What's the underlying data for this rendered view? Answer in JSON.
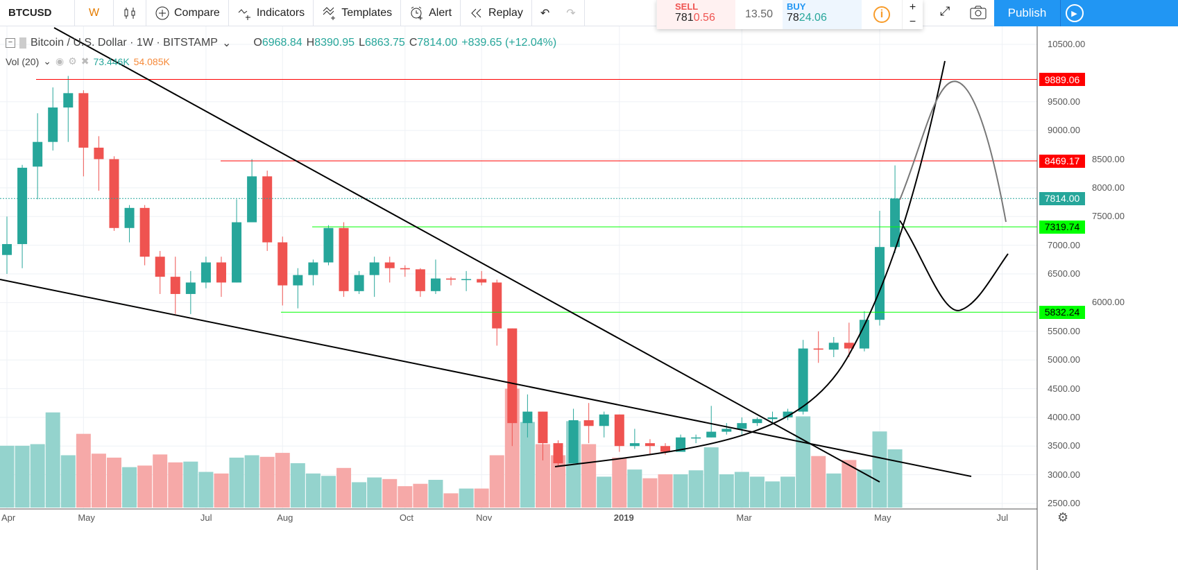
{
  "toolbar": {
    "symbol": "BTCUSD",
    "interval": "W",
    "compare": "Compare",
    "indicators": "Indicators",
    "templates": "Templates",
    "alert": "Alert",
    "replay": "Replay",
    "publish": "Publish"
  },
  "trade": {
    "sell_label": "SELL",
    "sell_a": "781",
    "sell_b": "0.56",
    "spread": "13.50",
    "buy_label": "BUY",
    "buy_a": "78",
    "buy_b": "24.06"
  },
  "legend": {
    "title": "Bitcoin / U.S. Dollar · 1W · BITSTAMP",
    "o": "6968.84",
    "h": "8390.95",
    "l": "6863.75",
    "c": "7814.00",
    "chg": "+839.65 (+12.04%)",
    "vol_label": "Vol (20)",
    "vol_value": "73.446K",
    "vol_ma": "54.085K"
  },
  "price_axis": {
    "ticks": [
      "10500.00",
      "9500.00",
      "9000.00",
      "8500.00",
      "8000.00",
      "7500.00",
      "7000.00",
      "6500.00",
      "6000.00",
      "5500.00",
      "5000.00",
      "4500.00",
      "4000.00",
      "3500.00",
      "3000.00",
      "2500.00"
    ],
    "tick_values": [
      10500,
      9500,
      9000,
      8500,
      8000,
      7500,
      7000,
      6500,
      6000,
      5500,
      5000,
      4500,
      4000,
      3500,
      3000,
      2500
    ],
    "range": [
      2500,
      10500
    ]
  },
  "levels": [
    {
      "label": "9889.06",
      "value": 9889.06,
      "color": "#ff0000"
    },
    {
      "label": "8469.17",
      "value": 8469.17,
      "color": "#ff0000"
    },
    {
      "label": "7814.00",
      "value": 7814,
      "color": "#26a69a"
    },
    {
      "label": "7319.74",
      "value": 7319.74,
      "color": "#00ff00"
    },
    {
      "label": "5832.24",
      "value": 5832.24,
      "color": "#00ff00"
    }
  ],
  "time_axis": [
    {
      "label": "Apr",
      "i": 0
    },
    {
      "label": "May",
      "i": 5
    },
    {
      "label": "Jul",
      "i": 13
    },
    {
      "label": "Aug",
      "i": 18
    },
    {
      "label": "Oct",
      "i": 26
    },
    {
      "label": "Nov",
      "i": 31
    },
    {
      "label": "2019",
      "i": 40
    },
    {
      "label": "Mar",
      "i": 48
    },
    {
      "label": "May",
      "i": 57
    },
    {
      "label": "Jul",
      "i": 65
    }
  ],
  "colors": {
    "up": "#26a69a",
    "down": "#ef5350",
    "vol_up": "#94d3cd",
    "vol_down": "#f6a9a8"
  },
  "chart_data": {
    "type": "candlestick",
    "title": "Bitcoin / U.S. Dollar · 1W · BITSTAMP",
    "candles": [
      [
        6830,
        7500,
        6500,
        7020
      ],
      [
        7020,
        8400,
        6600,
        8350
      ],
      [
        8370,
        9300,
        7800,
        8800
      ],
      [
        8800,
        9750,
        8650,
        9400
      ],
      [
        9400,
        9950,
        8800,
        9650
      ],
      [
        9650,
        9700,
        8200,
        8700
      ],
      [
        8700,
        8900,
        7950,
        8500
      ],
      [
        8500,
        8550,
        7250,
        7300
      ],
      [
        7300,
        7700,
        7050,
        7650
      ],
      [
        7650,
        7700,
        6650,
        6800
      ],
      [
        6800,
        6900,
        6150,
        6450
      ],
      [
        6450,
        6800,
        5800,
        6150
      ],
      [
        6150,
        6550,
        5800,
        6350
      ],
      [
        6350,
        6800,
        6250,
        6700
      ],
      [
        6700,
        6800,
        6100,
        6350
      ],
      [
        6350,
        7800,
        6350,
        7400
      ],
      [
        7400,
        8500,
        7400,
        8200
      ],
      [
        8200,
        8300,
        6900,
        7050
      ],
      [
        7050,
        7150,
        5950,
        6300
      ],
      [
        6300,
        6600,
        5900,
        6480
      ],
      [
        6480,
        6750,
        6300,
        6700
      ],
      [
        6700,
        7350,
        6650,
        7300
      ],
      [
        7300,
        7400,
        6100,
        6200
      ],
      [
        6200,
        6550,
        6150,
        6480
      ],
      [
        6480,
        6800,
        6100,
        6700
      ],
      [
        6700,
        6800,
        6350,
        6600
      ],
      [
        6600,
        6650,
        6450,
        6580
      ],
      [
        6580,
        6600,
        6100,
        6200
      ],
      [
        6200,
        6750,
        6150,
        6420
      ],
      [
        6420,
        6450,
        6300,
        6400
      ],
      [
        6400,
        6550,
        6200,
        6410
      ],
      [
        6410,
        6550,
        6300,
        6350
      ],
      [
        6350,
        6400,
        5250,
        5550
      ],
      [
        5550,
        5550,
        3500,
        3900
      ],
      [
        3900,
        4400,
        3650,
        4100
      ],
      [
        4100,
        4100,
        3250,
        3550
      ],
      [
        3550,
        3600,
        3150,
        3200
      ],
      [
        3200,
        4150,
        3200,
        3950
      ],
      [
        3950,
        4250,
        3550,
        3850
      ],
      [
        3850,
        4100,
        3650,
        4050
      ],
      [
        4050,
        4050,
        3400,
        3500
      ],
      [
        3500,
        3800,
        3450,
        3550
      ],
      [
        3550,
        3620,
        3350,
        3500
      ],
      [
        3500,
        3550,
        3350,
        3400
      ],
      [
        3400,
        3700,
        3400,
        3650
      ],
      [
        3640,
        3700,
        3550,
        3650
      ],
      [
        3650,
        4200,
        3650,
        3750
      ],
      [
        3750,
        3900,
        3700,
        3800
      ],
      [
        3800,
        4000,
        3700,
        3900
      ],
      [
        3900,
        4000,
        3850,
        3970
      ],
      [
        3970,
        4100,
        3900,
        4000
      ],
      [
        4000,
        4150,
        3950,
        4100
      ],
      [
        4100,
        5350,
        4050,
        5200
      ],
      [
        5200,
        5500,
        4950,
        5180
      ],
      [
        5180,
        5400,
        5050,
        5300
      ],
      [
        5300,
        5650,
        5050,
        5200
      ],
      [
        5200,
        5850,
        5150,
        5700
      ],
      [
        5700,
        7600,
        5600,
        6968.84
      ],
      [
        6968.84,
        8390.95,
        6863.75,
        7814
      ]
    ],
    "volume_k": [
      78,
      78,
      80,
      120,
      66,
      93,
      68,
      63,
      51,
      53,
      67,
      57,
      58,
      45,
      43,
      63,
      66,
      64,
      69,
      56,
      43,
      40,
      50,
      32,
      38,
      36,
      27,
      30,
      35,
      18,
      24,
      24,
      66,
      150,
      108,
      80,
      66,
      109,
      80,
      39,
      63,
      48,
      37,
      42,
      42,
      47,
      76,
      42,
      45,
      39,
      33,
      39,
      115,
      65,
      43,
      60,
      48,
      96,
      73.446
    ]
  }
}
